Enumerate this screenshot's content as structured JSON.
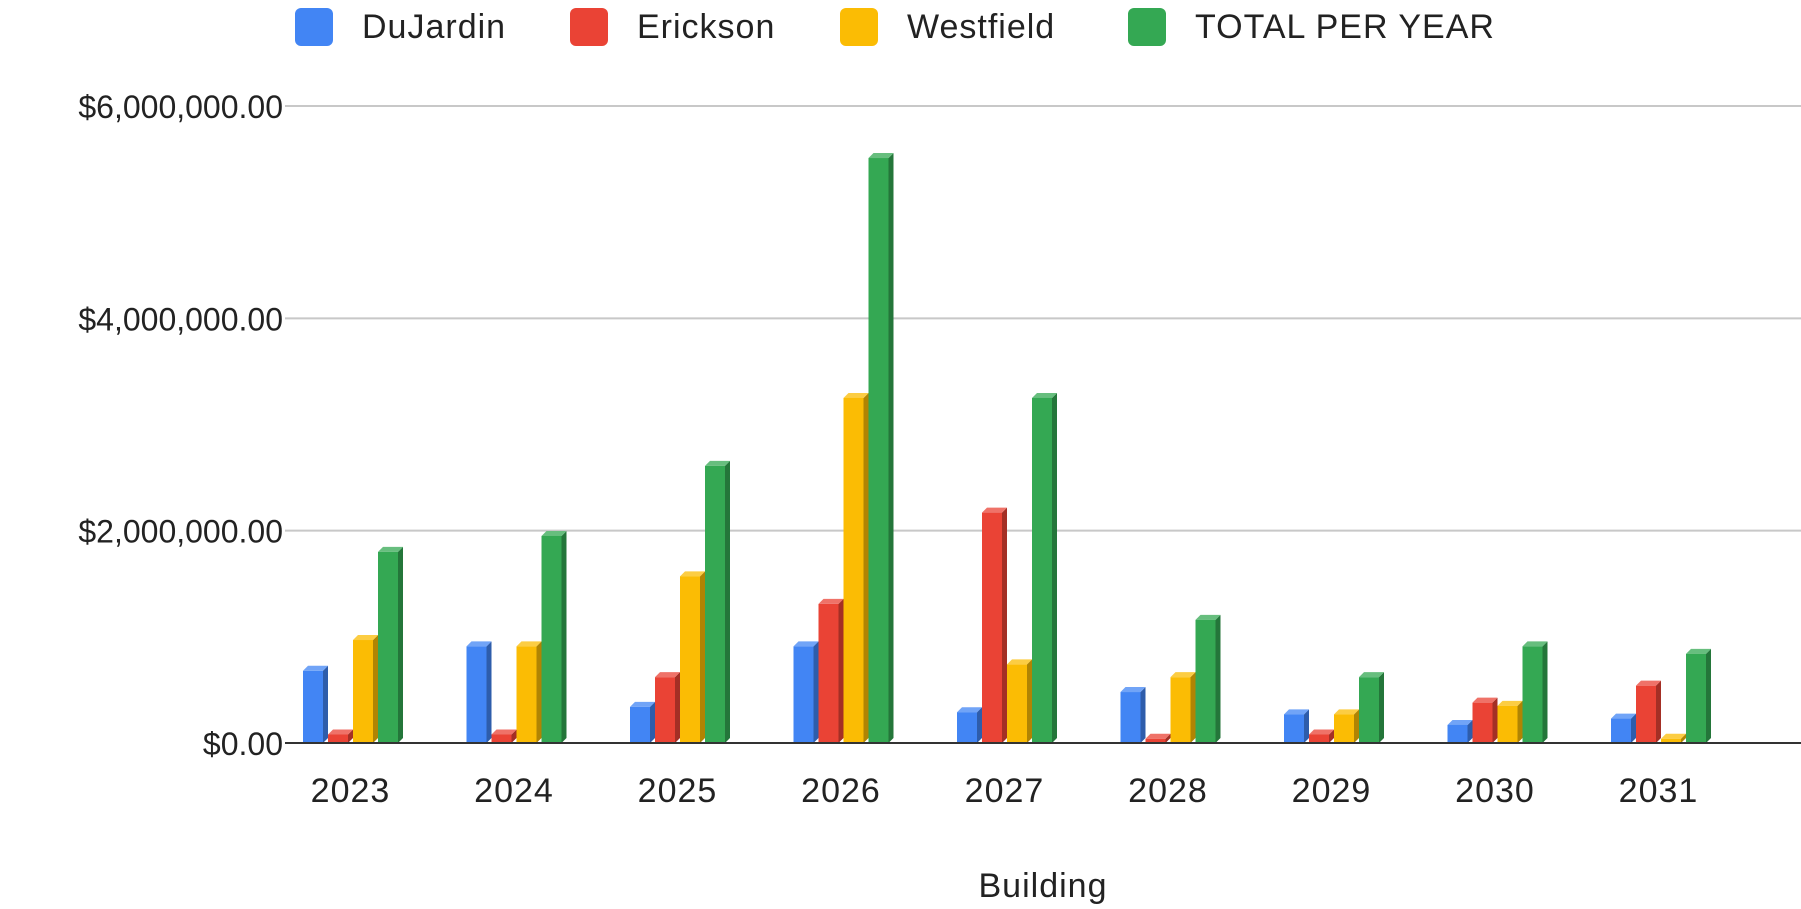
{
  "chart_data": {
    "type": "bar",
    "title": "",
    "xlabel": "Building",
    "ylabel": "",
    "categories": [
      "2023",
      "2024",
      "2025",
      "2026",
      "2027",
      "2028",
      "2029",
      "2030",
      "2031"
    ],
    "series": [
      {
        "name": "DuJardin",
        "color": "#4285f4",
        "values": [
          680000,
          910000,
          340000,
          910000,
          290000,
          480000,
          270000,
          170000,
          230000
        ]
      },
      {
        "name": "Erickson",
        "color": "#ea4335",
        "values": [
          80000,
          80000,
          620000,
          1310000,
          2170000,
          40000,
          80000,
          380000,
          540000
        ]
      },
      {
        "name": "Westfield",
        "color": "#fbbc04",
        "values": [
          970000,
          910000,
          1570000,
          3250000,
          740000,
          620000,
          270000,
          350000,
          40000
        ]
      },
      {
        "name": "TOTAL PER YEAR",
        "color": "#34a853",
        "values": [
          1800000,
          1950000,
          2610000,
          5510000,
          3250000,
          1160000,
          620000,
          910000,
          840000
        ]
      }
    ],
    "ylim": [
      0,
      6000000
    ],
    "yticks": [
      0,
      2000000,
      4000000,
      6000000
    ],
    "ytick_labels": [
      "$0.00",
      "$2,000,000.00",
      "$4,000,000.00",
      "$6,000,000.00"
    ],
    "grid": true,
    "legend_position": "top",
    "style": "3d-bars"
  }
}
